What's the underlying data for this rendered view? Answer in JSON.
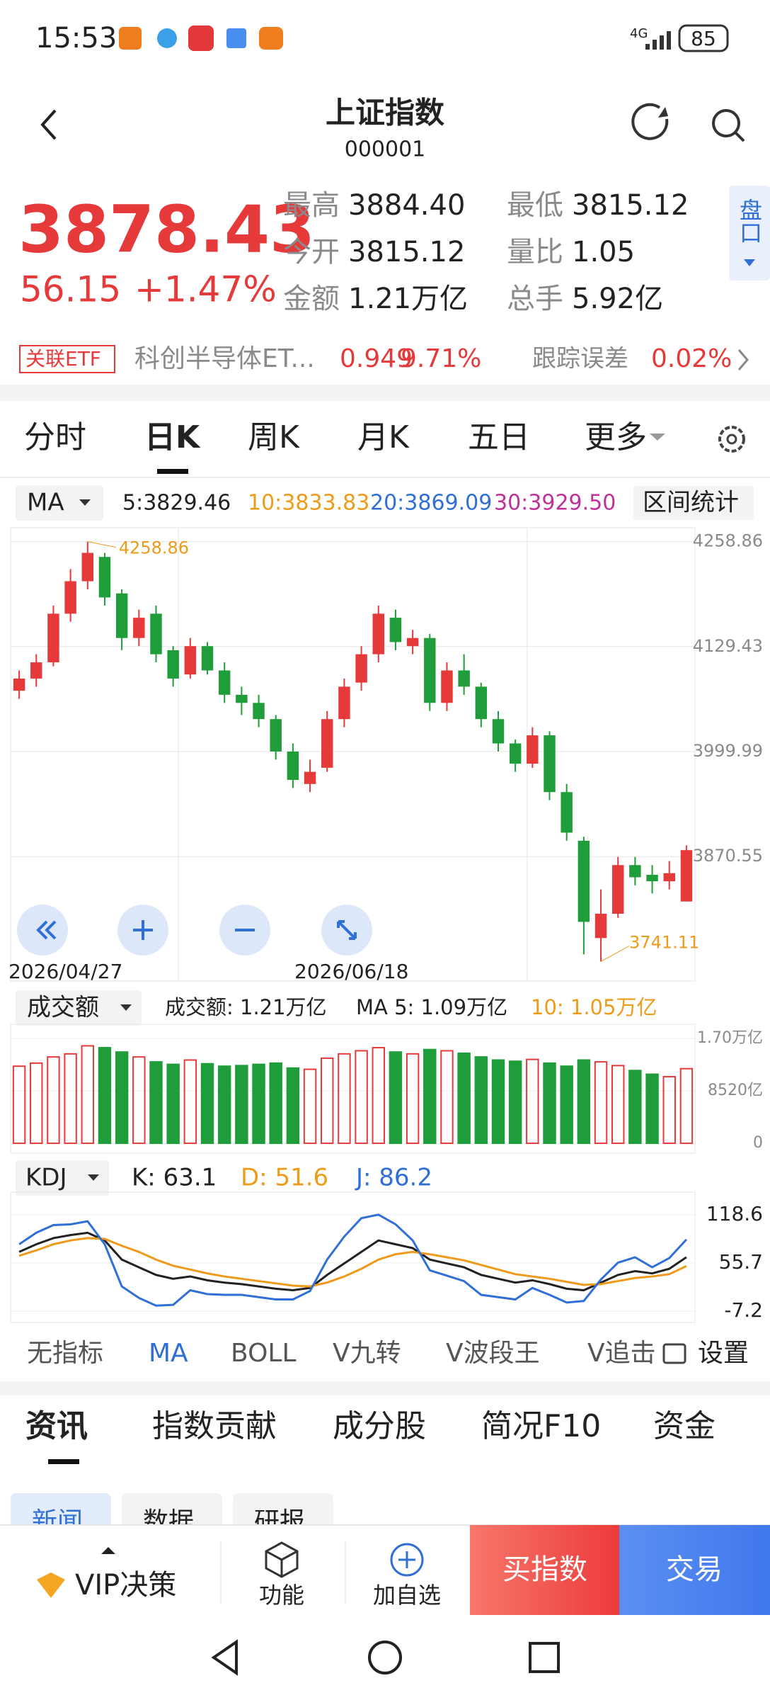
{
  "status": {
    "time": "15:53",
    "network": "4G",
    "battery": "85"
  },
  "header": {
    "title": "上证指数",
    "code": "000001"
  },
  "quote": {
    "price": "3878.43",
    "change": "56.15",
    "change_pct": "+1.47%",
    "side_button": "盘口",
    "stats": [
      {
        "label": "最高",
        "value": "3884.40"
      },
      {
        "label": "最低",
        "value": "3815.12"
      },
      {
        "label": "今开",
        "value": "3815.12"
      },
      {
        "label": "量比",
        "value": "1.05"
      },
      {
        "label": "金额",
        "value": "1.21万亿"
      },
      {
        "label": "总手",
        "value": "5.92亿"
      }
    ]
  },
  "etf": {
    "tag": "关联ETF",
    "name": "科创半导体ET...",
    "price": "0.949",
    "change": "9.71%",
    "error_label": "跟踪误差",
    "error": "0.02%"
  },
  "period_tabs": [
    "分时",
    "日K",
    "周K",
    "月K",
    "五日",
    "更多"
  ],
  "ma_legend": {
    "selector": "MA",
    "button": "区间统计",
    "items": [
      {
        "label": "5:3829.46",
        "color": "#222222"
      },
      {
        "label": "10:3833.83",
        "color": "#ee9a1a"
      },
      {
        "label": "20:3869.09",
        "color": "#2f6fd6"
      },
      {
        "label": "30:3929.50",
        "color": "#c0309a"
      }
    ]
  },
  "price_chart": {
    "type": "candlestick",
    "up_color": "#e63a3a",
    "down_color": "#1f9d3a",
    "ylim": [
      3717,
      4276
    ],
    "yticks": [
      4258.86,
      4129.43,
      3999.99,
      3870.55
    ],
    "max_label": "4258.86",
    "min_label": "3741.11",
    "dates": [
      "2026/04/27",
      "2026/06/18"
    ],
    "candles": [
      [
        4075,
        4100,
        4065,
        4090
      ],
      [
        4090,
        4120,
        4080,
        4110
      ],
      [
        4110,
        4180,
        4105,
        4170
      ],
      [
        4170,
        4225,
        4160,
        4210
      ],
      [
        4210,
        4258.86,
        4200,
        4245
      ],
      [
        4240,
        4245,
        4180,
        4190
      ],
      [
        4195,
        4200,
        4125,
        4140
      ],
      [
        4140,
        4175,
        4130,
        4165
      ],
      [
        4170,
        4180,
        4110,
        4120
      ],
      [
        4125,
        4130,
        4080,
        4090
      ],
      [
        4095,
        4140,
        4090,
        4130
      ],
      [
        4130,
        4135,
        4095,
        4100
      ],
      [
        4100,
        4110,
        4060,
        4070
      ],
      [
        4070,
        4080,
        4045,
        4060
      ],
      [
        4060,
        4070,
        4030,
        4040
      ],
      [
        4040,
        4045,
        3990,
        4000
      ],
      [
        4000,
        4010,
        3955,
        3965
      ],
      [
        3960,
        3990,
        3950,
        3975
      ],
      [
        3980,
        4050,
        3975,
        4040
      ],
      [
        4040,
        4090,
        4030,
        4080
      ],
      [
        4085,
        4130,
        4075,
        4120
      ],
      [
        4120,
        4180,
        4110,
        4170
      ],
      [
        4165,
        4175,
        4125,
        4135
      ],
      [
        4130,
        4150,
        4120,
        4140
      ],
      [
        4140,
        4145,
        4050,
        4060
      ],
      [
        4060,
        4110,
        4050,
        4100
      ],
      [
        4100,
        4120,
        4070,
        4080
      ],
      [
        4080,
        4085,
        4030,
        4040
      ],
      [
        4040,
        4050,
        4000,
        4010
      ],
      [
        4010,
        4015,
        3975,
        3985
      ],
      [
        3985,
        4030,
        3980,
        4020
      ],
      [
        4020,
        4025,
        3940,
        3950
      ],
      [
        3950,
        3960,
        3890,
        3900
      ],
      [
        3890,
        3895,
        3750,
        3790
      ],
      [
        3770,
        3830,
        3741.11,
        3800
      ],
      [
        3800,
        3870,
        3795,
        3860
      ],
      [
        3860,
        3870,
        3835,
        3845
      ],
      [
        3848,
        3860,
        3825,
        3840
      ],
      [
        3840,
        3865,
        3830,
        3850
      ],
      [
        3815.12,
        3884.4,
        3815.12,
        3878.43
      ]
    ]
  },
  "volume_chart": {
    "type": "bar",
    "selector": "成交额",
    "amount": "成交额: 1.21万亿",
    "ma5": "MA 5: 1.09万亿",
    "ma10": "10: 1.05万亿",
    "ylim": [
      -1600,
      19300
    ],
    "yticks": [
      {
        "value": 17000,
        "label": "1.70万亿"
      },
      {
        "value": 8520,
        "label": "8520亿"
      },
      0
    ],
    "values": [
      12500,
      13000,
      14000,
      14500,
      15800,
      15500,
      14800,
      14000,
      13200,
      12800,
      13500,
      12900,
      12500,
      12600,
      12800,
      13000,
      12200,
      12000,
      13800,
      14500,
      15000,
      15500,
      14800,
      14500,
      15200,
      15000,
      14600,
      14000,
      13500,
      13300,
      13600,
      13000,
      12500,
      13500,
      13200,
      12600,
      11800,
      11200,
      10800,
      12100
    ]
  },
  "kdj_chart": {
    "type": "line",
    "selector": "KDJ",
    "ylim": [
      -22,
      148
    ],
    "yticks": [
      118.6,
      55.7,
      -7.2
    ],
    "series": [
      {
        "name": "K: 63.1",
        "color": "#222222",
        "values": [
          70,
          80,
          88,
          92,
          95,
          85,
          60,
          50,
          40,
          35,
          38,
          33,
          30,
          28,
          25,
          22,
          20,
          23,
          40,
          55,
          70,
          85,
          80,
          75,
          60,
          55,
          50,
          40,
          35,
          30,
          33,
          28,
          22,
          20,
          30,
          40,
          45,
          42,
          48,
          63.1
        ]
      },
      {
        "name": "D: 51.6",
        "color": "#ee9a1a",
        "values": [
          65,
          72,
          80,
          85,
          88,
          87,
          78,
          70,
          60,
          52,
          47,
          42,
          38,
          35,
          32,
          29,
          26,
          25,
          30,
          38,
          48,
          60,
          67,
          70,
          67,
          63,
          59,
          53,
          47,
          41,
          38,
          35,
          31,
          27,
          28,
          32,
          36,
          38,
          41,
          51.6
        ]
      },
      {
        "name": "J: 86.2",
        "color": "#2f6fd6",
        "values": [
          80,
          95,
          105,
          106,
          110,
          80,
          25,
          10,
          0,
          1,
          20,
          15,
          14,
          14,
          11,
          8,
          8,
          19,
          60,
          90,
          114,
          118.6,
          106,
          85,
          46,
          39,
          32,
          14,
          11,
          8,
          23,
          14,
          4,
          6,
          34,
          56,
          63,
          50,
          62,
          86.2
        ]
      }
    ]
  },
  "indicators": {
    "items": [
      "无指标",
      "MA",
      "BOLL",
      "V九转",
      "V波段王",
      "V追击"
    ],
    "settings": "设置"
  },
  "info_tabs": [
    "资讯",
    "指数贡献",
    "成分股",
    "简况F10",
    "资金"
  ],
  "sub_tabs": [
    "新闻",
    "数据",
    "研报"
  ],
  "bottom_bar": {
    "vip": "VIP决策",
    "function": "功能",
    "watch": "加自选",
    "buy": "买指数",
    "trade": "交易"
  }
}
